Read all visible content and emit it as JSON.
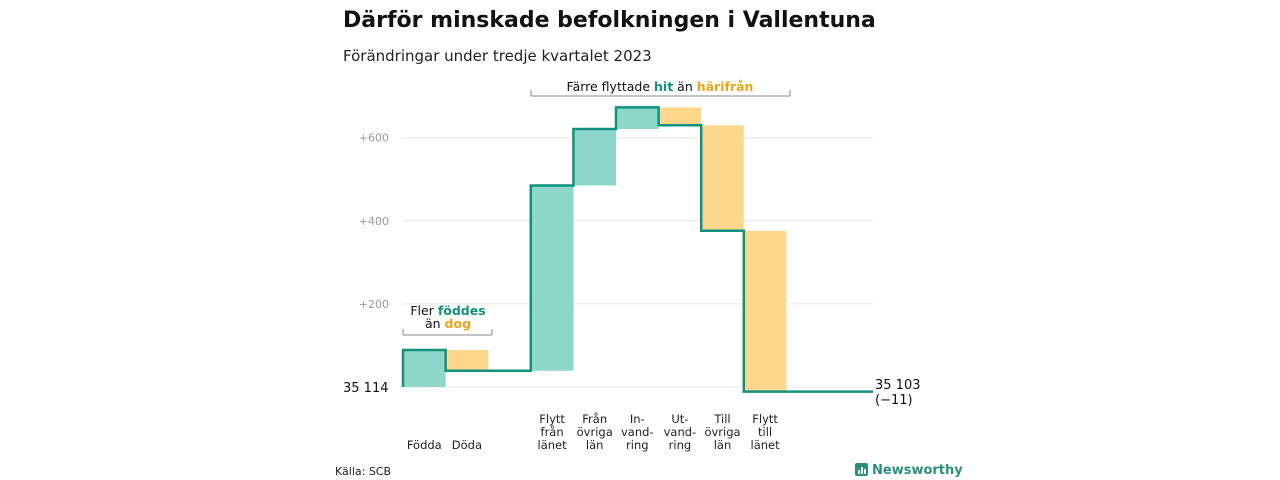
{
  "title": "Därför minskade befolkningen i Vallentuna",
  "subtitle": "Förändringar under tredje kvartalet 2023",
  "source": "Källa: SCB",
  "logo": "Newsworthy",
  "colors": {
    "increase": "#8fd6cb",
    "decrease": "#fdd78d",
    "line": "#13907f",
    "teal_text": "#13907f",
    "orange_text": "#e8a51f",
    "grid": "#e4e4e4"
  },
  "annotations": {
    "births": {
      "line1_prefix": "Fler ",
      "line1_highlight": "föddes",
      "line2_prefix": "än ",
      "line2_highlight": "dog"
    },
    "moves": {
      "prefix": "Färre flyttade ",
      "highlight1": "hit",
      "middle": " än ",
      "highlight2": "härifrån"
    }
  },
  "chart_data": {
    "type": "waterfall",
    "start": {
      "value": 35114,
      "label": "35  114"
    },
    "end": {
      "value": 35103,
      "label": "35 103",
      "change_label": "(−11)"
    },
    "yticks": [
      {
        "value": 200,
        "label": "+200"
      },
      {
        "value": 400,
        "label": "+400"
      },
      {
        "value": 600,
        "label": "+600"
      }
    ],
    "ylim": [
      0,
      670
    ],
    "categories": [
      {
        "lines": [
          "Födda"
        ],
        "change": 89
      },
      {
        "lines": [
          "Döda"
        ],
        "change": -50
      },
      {
        "lines": [
          "Flytt",
          "från",
          "länet"
        ],
        "change": 446
      },
      {
        "lines": [
          "Från",
          "övriga",
          "län"
        ],
        "change": 136
      },
      {
        "lines": [
          "In-",
          "vand-",
          "ring"
        ],
        "change": 52
      },
      {
        "lines": [
          "Ut-",
          "vand-",
          "ring"
        ],
        "change": -43
      },
      {
        "lines": [
          "Till",
          "övriga",
          "län"
        ],
        "change": -254
      },
      {
        "lines": [
          "Flytt",
          "till",
          "länet"
        ],
        "change": -387
      }
    ]
  }
}
